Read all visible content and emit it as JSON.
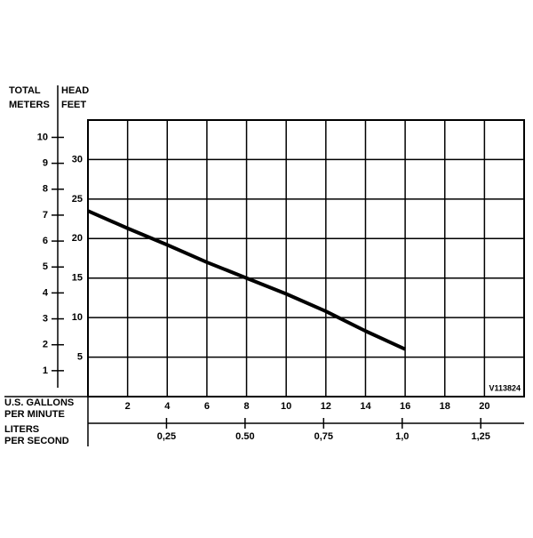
{
  "chart_data": {
    "type": "line",
    "y_label_left": [
      "TOTAL",
      "METERS"
    ],
    "y_label_right": [
      "HEAD",
      "FEET"
    ],
    "x_label": [
      "U.S. GALLONS",
      "PER MINUTE"
    ],
    "x2_label": [
      "LITERS",
      "PER SECOND"
    ],
    "annotation": "V113824",
    "x": [
      0,
      2,
      4,
      6,
      8,
      10,
      12,
      14,
      16
    ],
    "series": [
      {
        "color": "#000000",
        "values": [
          23.5,
          21.3,
          19.2,
          17,
          15,
          13,
          10.8,
          8.3,
          6
        ]
      }
    ],
    "xlim": [
      0,
      22
    ],
    "xticks": [
      2,
      4,
      6,
      8,
      10,
      12,
      14,
      16,
      18,
      20
    ],
    "x2lim": [
      0,
      1.388
    ],
    "x2ticks": [
      {
        "value": 0.25,
        "label": "0,25"
      },
      {
        "value": 0.5,
        "label": "0.50"
      },
      {
        "value": 0.75,
        "label": "0,75"
      },
      {
        "value": 1.0,
        "label": "1,0"
      },
      {
        "value": 1.25,
        "label": "1,25"
      }
    ],
    "ylim": [
      0,
      35
    ],
    "yticks": [
      5,
      10,
      15,
      20,
      25,
      30
    ],
    "y2lim": [
      0,
      10.668
    ],
    "y2ticks": [
      1,
      2,
      3,
      4,
      5,
      6,
      7,
      8,
      9,
      10
    ],
    "grid": true
  }
}
